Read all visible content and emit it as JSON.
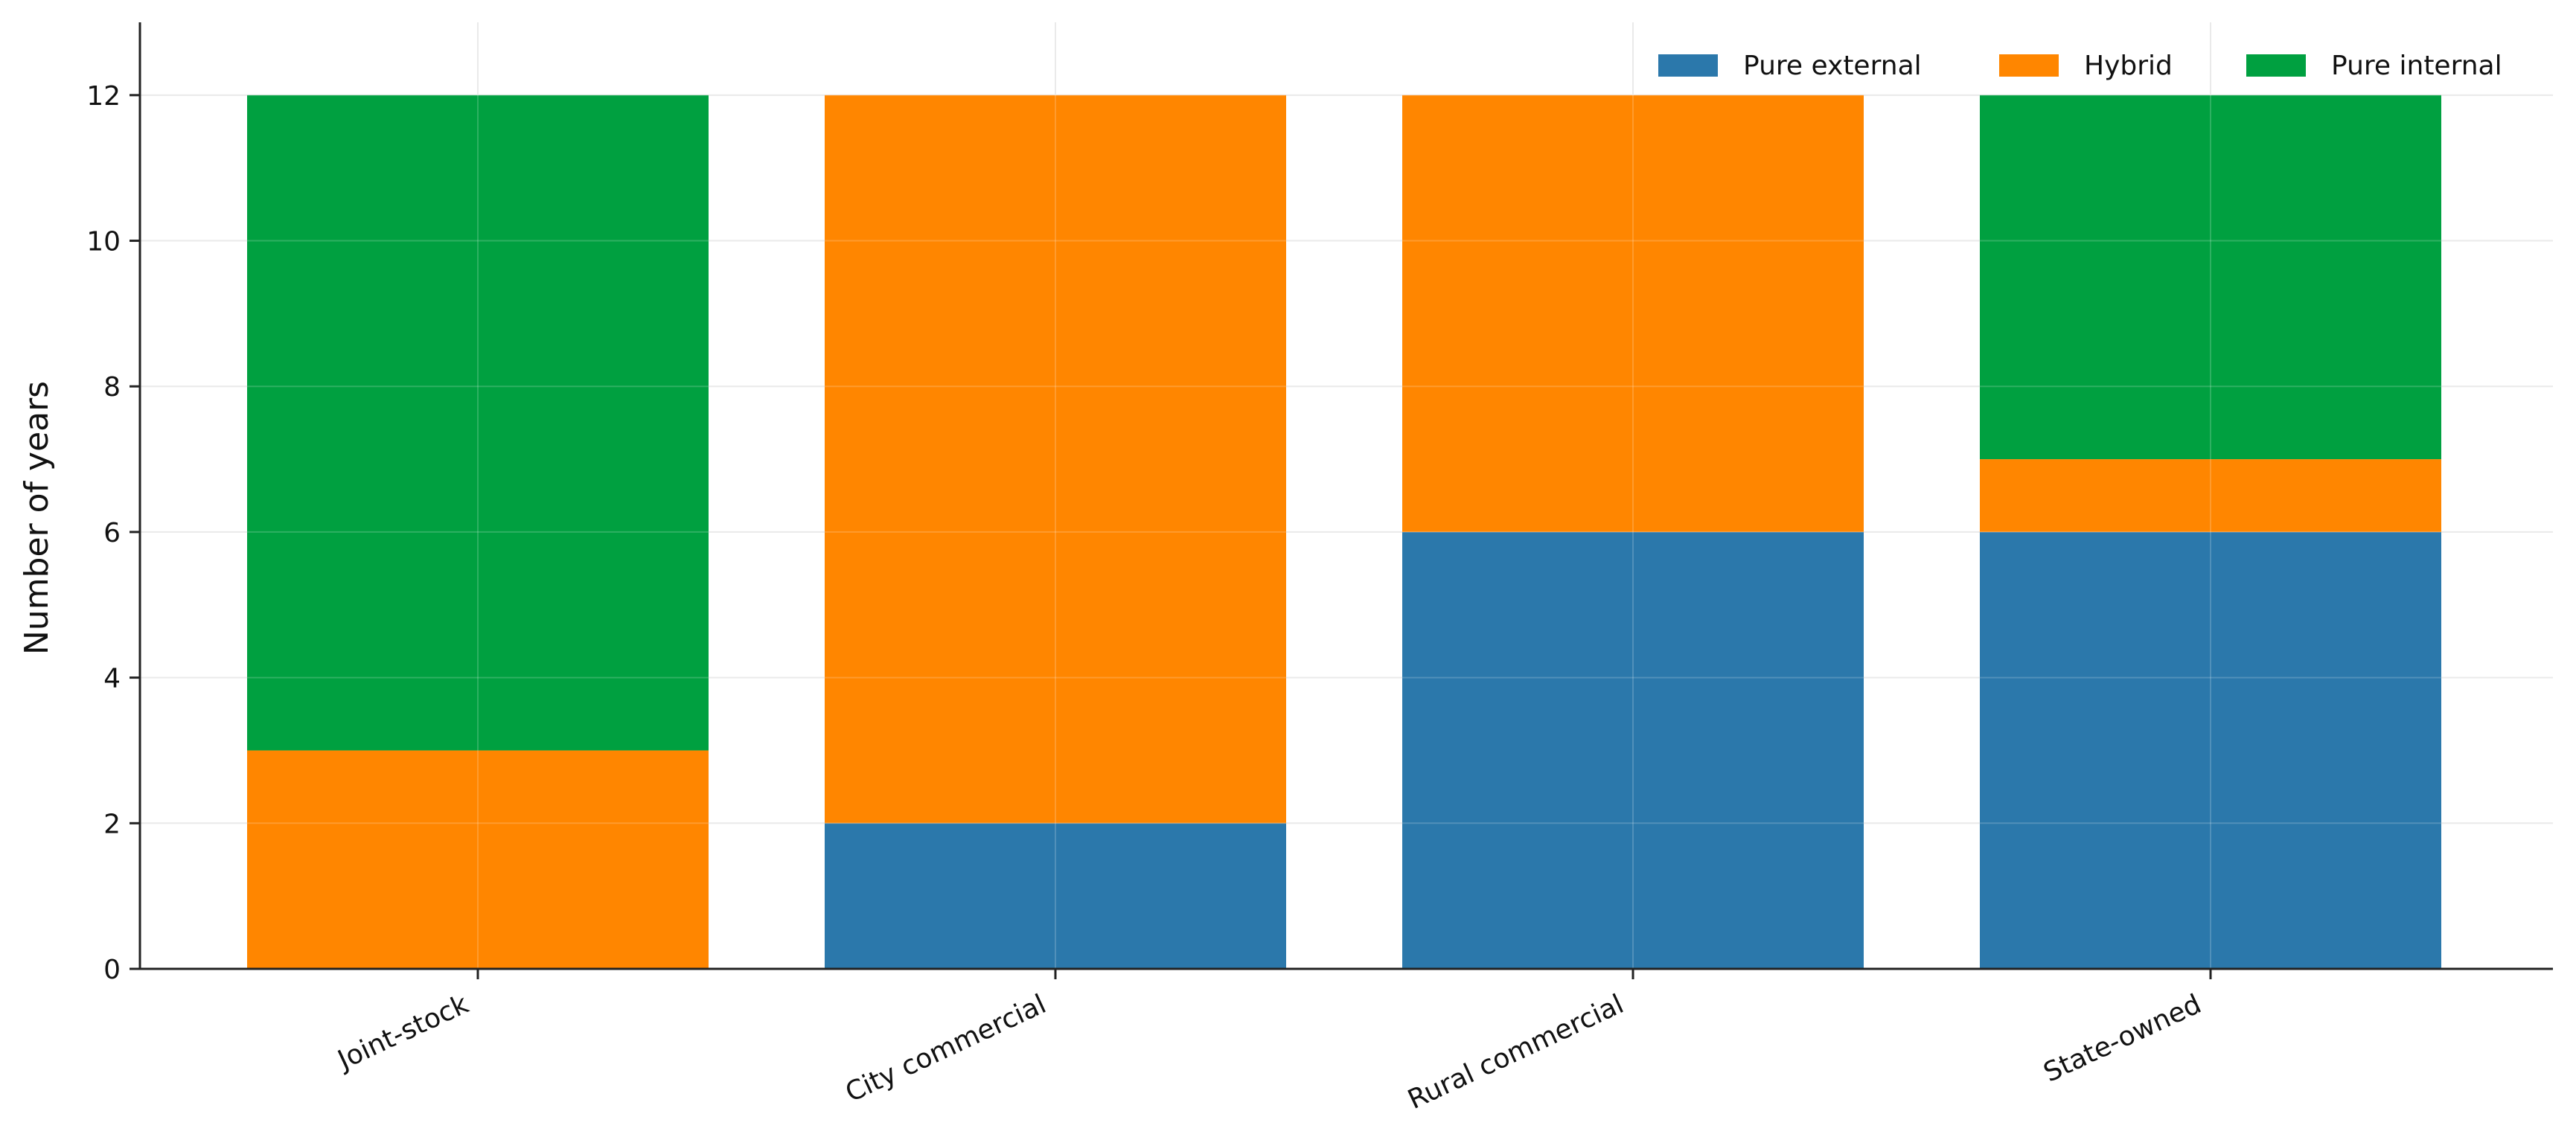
{
  "chart_data": {
    "type": "bar",
    "stacked": true,
    "categories": [
      "Joint-stock",
      "City commercial",
      "Rural commercial",
      "State-owned"
    ],
    "series": [
      {
        "name": "Pure external",
        "values": [
          0,
          2,
          6,
          6
        ],
        "color": "#2b78ab"
      },
      {
        "name": "Hybrid",
        "values": [
          3,
          10,
          6,
          1
        ],
        "color": "#ff8600"
      },
      {
        "name": "Pure internal",
        "values": [
          9,
          0,
          0,
          5
        ],
        "color": "#00a040"
      }
    ],
    "ylabel": "Number of years",
    "ylim": [
      0,
      13
    ],
    "yticks": [
      0,
      2,
      4,
      6,
      8,
      10,
      12
    ],
    "grid": true,
    "legend": "top-right",
    "colors": {
      "grid": "#e6e6e6",
      "axis": "#222222"
    }
  }
}
